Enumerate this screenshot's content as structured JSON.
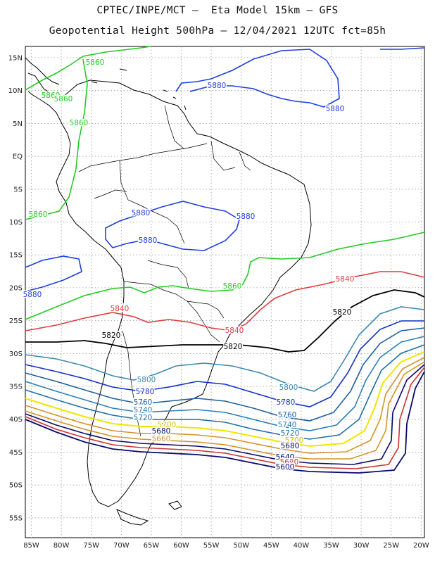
{
  "header": {
    "line1": "CPTEC/INPE/MCT –  Eta Model 15km – GFS",
    "line2": "Geopotential Height 500hPa – 12/04/2021 12UTC fct=85h"
  },
  "axes": {
    "lat_labels": [
      "15N",
      "10N",
      "5N",
      "EQ",
      "5S",
      "10S",
      "15S",
      "20S",
      "25S",
      "30S",
      "35S",
      "40S",
      "45S",
      "50S",
      "55S"
    ],
    "lon_labels": [
      "85W",
      "80W",
      "75W",
      "70W",
      "65W",
      "60W",
      "55W",
      "50W",
      "45W",
      "40W",
      "35W",
      "30W",
      "25W",
      "20W"
    ],
    "grid": true,
    "grid_style": "dotted"
  },
  "contour_colors": {
    "5600": "#0a0a6e",
    "5620": "#cc3333",
    "5640": "#e0607a",
    "5660": "#d4922a",
    "5680": "#e6dd22",
    "5700": "#f0e600",
    "5720": "#1f6fa8",
    "5740": "#2a7fb8",
    "5760": "#1c5f9e",
    "5780": "#1030c8",
    "5800": "#3a8aaf",
    "5820": "#000000",
    "5840": "#e03c3c",
    "5860": "#22cc22",
    "5880": "#1e3fdc"
  },
  "contour_labels": [
    {
      "text": "5860",
      "color": "#22cc22"
    },
    {
      "text": "5860",
      "color": "#22cc22"
    },
    {
      "text": "5860",
      "color": "#22cc22"
    },
    {
      "text": "5860",
      "color": "#22cc22"
    },
    {
      "text": "5860",
      "color": "#22cc22"
    },
    {
      "text": "5860",
      "color": "#22cc22"
    },
    {
      "text": "5880",
      "color": "#1e3fdc"
    },
    {
      "text": "5880",
      "color": "#1e3fdc"
    },
    {
      "text": "5880",
      "color": "#1e3fdc"
    },
    {
      "text": "5880",
      "color": "#1e3fdc"
    },
    {
      "text": "5880",
      "color": "#1e3fdc"
    },
    {
      "text": "5880",
      "color": "#1e3fdc"
    },
    {
      "text": "5840",
      "color": "#e03c3c"
    },
    {
      "text": "5840",
      "color": "#e03c3c"
    },
    {
      "text": "5840",
      "color": "#e03c3c"
    },
    {
      "text": "5820",
      "color": "#000000"
    },
    {
      "text": "5820",
      "color": "#000000"
    },
    {
      "text": "5820",
      "color": "#000000"
    },
    {
      "text": "5800",
      "color": "#3a8aaf"
    },
    {
      "text": "5800",
      "color": "#3a8aaf"
    },
    {
      "text": "5780",
      "color": "#1030c8"
    },
    {
      "text": "5780",
      "color": "#1030c8"
    },
    {
      "text": "5760",
      "color": "#1c5f9e"
    },
    {
      "text": "5760",
      "color": "#1c5f9e"
    },
    {
      "text": "5740",
      "color": "#2a7fb8"
    },
    {
      "text": "5740",
      "color": "#2a7fb8"
    },
    {
      "text": "5720",
      "color": "#1f6fa8"
    },
    {
      "text": "5720",
      "color": "#1f6fa8"
    },
    {
      "text": "5700",
      "color": "#d4c400"
    },
    {
      "text": "5700",
      "color": "#d4c400"
    },
    {
      "text": "5680",
      "color": "#0a0a6e"
    },
    {
      "text": "5680",
      "color": "#0a0a6e"
    },
    {
      "text": "5660",
      "color": "#d4922a"
    },
    {
      "text": "5640",
      "color": "#0a0a6e"
    },
    {
      "text": "5620",
      "color": "#cc3333"
    },
    {
      "text": "5600",
      "color": "#0a0a6e"
    }
  ]
}
